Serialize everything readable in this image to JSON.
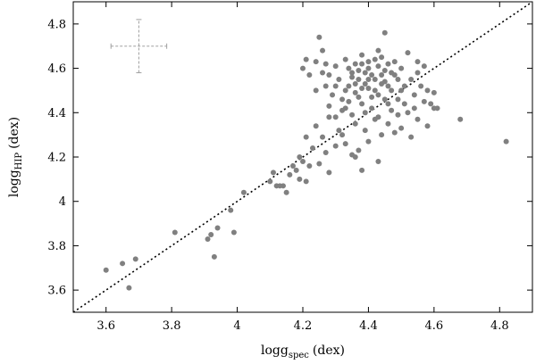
{
  "chart_data": {
    "type": "scatter",
    "xlabel": {
      "main": "logg",
      "sub": "spec",
      "unit": "(dex)"
    },
    "ylabel": {
      "main": "logg",
      "sub": "HIP",
      "unit": "(dex)"
    },
    "xlim": [
      3.5,
      4.9
    ],
    "ylim": [
      3.5,
      4.9
    ],
    "xticks": [
      "3.6",
      "3.8",
      "4",
      "4.2",
      "4.4",
      "4.6",
      "4.8"
    ],
    "yticks": [
      "3.6",
      "3.8",
      "4",
      "4.2",
      "4.4",
      "4.6",
      "4.8"
    ],
    "grid": false,
    "marker_color": "#808080",
    "reference_line": {
      "style": "dotted",
      "color": "#000000",
      "from": [
        3.5,
        3.5
      ],
      "to": [
        4.9,
        4.9
      ]
    },
    "error_bar": {
      "x": 3.7,
      "y": 4.7,
      "xerr": 0.085,
      "yerr": 0.12,
      "color": "#a0a0a0"
    },
    "points": [
      [
        3.6,
        3.69
      ],
      [
        3.65,
        3.72
      ],
      [
        3.67,
        3.61
      ],
      [
        3.69,
        3.74
      ],
      [
        3.81,
        3.86
      ],
      [
        3.91,
        3.83
      ],
      [
        3.92,
        3.85
      ],
      [
        3.93,
        3.75
      ],
      [
        3.94,
        3.88
      ],
      [
        3.98,
        3.96
      ],
      [
        3.99,
        3.86
      ],
      [
        4.02,
        4.04
      ],
      [
        4.1,
        4.09
      ],
      [
        4.11,
        4.13
      ],
      [
        4.12,
        4.07
      ],
      [
        4.13,
        4.07
      ],
      [
        4.14,
        4.07
      ],
      [
        4.15,
        4.04
      ],
      [
        4.16,
        4.12
      ],
      [
        4.17,
        4.16
      ],
      [
        4.18,
        4.14
      ],
      [
        4.19,
        4.2
      ],
      [
        4.19,
        4.1
      ],
      [
        4.2,
        4.18
      ],
      [
        4.21,
        4.29
      ],
      [
        4.21,
        4.09
      ],
      [
        4.22,
        4.16
      ],
      [
        4.23,
        4.24
      ],
      [
        4.24,
        4.34
      ],
      [
        4.25,
        4.17
      ],
      [
        4.26,
        4.29
      ],
      [
        4.27,
        4.22
      ],
      [
        4.28,
        4.13
      ],
      [
        4.28,
        4.38
      ],
      [
        4.3,
        4.25
      ],
      [
        4.31,
        4.32
      ],
      [
        4.32,
        4.3
      ],
      [
        4.33,
        4.26
      ],
      [
        4.33,
        4.42
      ],
      [
        4.35,
        4.21
      ],
      [
        4.36,
        4.2
      ],
      [
        4.36,
        4.35
      ],
      [
        4.37,
        4.23
      ],
      [
        4.38,
        4.14
      ],
      [
        4.39,
        4.32
      ],
      [
        4.4,
        4.27
      ],
      [
        4.42,
        4.37
      ],
      [
        4.43,
        4.18
      ],
      [
        4.44,
        4.3
      ],
      [
        4.46,
        4.35
      ],
      [
        4.48,
        4.31
      ],
      [
        4.5,
        4.33
      ],
      [
        4.53,
        4.29
      ],
      [
        4.55,
        4.37
      ],
      [
        4.58,
        4.34
      ],
      [
        4.6,
        4.42
      ],
      [
        4.68,
        4.37
      ],
      [
        4.82,
        4.27
      ],
      [
        4.2,
        4.6
      ],
      [
        4.21,
        4.64
      ],
      [
        4.22,
        4.57
      ],
      [
        4.24,
        4.63
      ],
      [
        4.25,
        4.74
      ],
      [
        4.26,
        4.68
      ],
      [
        4.27,
        4.52
      ],
      [
        4.27,
        4.62
      ],
      [
        4.28,
        4.57
      ],
      [
        4.29,
        4.48
      ],
      [
        4.3,
        4.61
      ],
      [
        4.31,
        4.55
      ],
      [
        4.32,
        4.46
      ],
      [
        4.33,
        4.64
      ],
      [
        4.34,
        4.52
      ],
      [
        4.35,
        4.58
      ],
      [
        4.36,
        4.49
      ],
      [
        4.36,
        4.62
      ],
      [
        4.37,
        4.55
      ],
      [
        4.38,
        4.44
      ],
      [
        4.38,
        4.66
      ],
      [
        4.39,
        4.58
      ],
      [
        4.4,
        4.51
      ],
      [
        4.4,
        4.6
      ],
      [
        4.41,
        4.47
      ],
      [
        4.42,
        4.64
      ],
      [
        4.42,
        4.55
      ],
      [
        4.43,
        4.48
      ],
      [
        4.43,
        4.68
      ],
      [
        4.44,
        4.53
      ],
      [
        4.45,
        4.76
      ],
      [
        4.45,
        4.59
      ],
      [
        4.46,
        4.44
      ],
      [
        4.46,
        4.62
      ],
      [
        4.47,
        4.5
      ],
      [
        4.48,
        4.57
      ],
      [
        4.49,
        4.46
      ],
      [
        4.5,
        4.6
      ],
      [
        4.51,
        4.52
      ],
      [
        4.52,
        4.67
      ],
      [
        4.53,
        4.55
      ],
      [
        4.54,
        4.48
      ],
      [
        4.55,
        4.63
      ],
      [
        4.56,
        4.52
      ],
      [
        4.57,
        4.45
      ],
      [
        4.58,
        4.5
      ],
      [
        4.59,
        4.44
      ],
      [
        4.6,
        4.49
      ],
      [
        4.61,
        4.42
      ],
      [
        4.28,
        4.43
      ],
      [
        4.3,
        4.38
      ],
      [
        4.32,
        4.41
      ],
      [
        4.34,
        4.45
      ],
      [
        4.35,
        4.39
      ],
      [
        4.37,
        4.47
      ],
      [
        4.39,
        4.4
      ],
      [
        4.41,
        4.42
      ],
      [
        4.43,
        4.38
      ],
      [
        4.45,
        4.46
      ],
      [
        4.47,
        4.41
      ],
      [
        4.49,
        4.39
      ],
      [
        4.51,
        4.44
      ],
      [
        4.52,
        4.4
      ],
      [
        4.54,
        4.42
      ],
      [
        4.33,
        4.5
      ],
      [
        4.35,
        4.56
      ],
      [
        4.37,
        4.59
      ],
      [
        4.39,
        4.53
      ],
      [
        4.41,
        4.57
      ],
      [
        4.43,
        4.61
      ],
      [
        4.45,
        4.54
      ],
      [
        4.47,
        4.58
      ],
      [
        4.49,
        4.55
      ],
      [
        4.36,
        4.53
      ],
      [
        4.4,
        4.55
      ],
      [
        4.44,
        4.57
      ],
      [
        4.38,
        4.51
      ],
      [
        4.42,
        4.5
      ],
      [
        4.46,
        4.52
      ],
      [
        4.5,
        4.5
      ],
      [
        4.3,
        4.52
      ],
      [
        4.34,
        4.6
      ],
      [
        4.48,
        4.63
      ],
      [
        4.26,
        4.58
      ],
      [
        4.24,
        4.5
      ],
      [
        4.55,
        4.58
      ],
      [
        4.57,
        4.61
      ],
      [
        4.4,
        4.63
      ],
      [
        4.44,
        4.65
      ],
      [
        4.38,
        4.62
      ]
    ]
  }
}
